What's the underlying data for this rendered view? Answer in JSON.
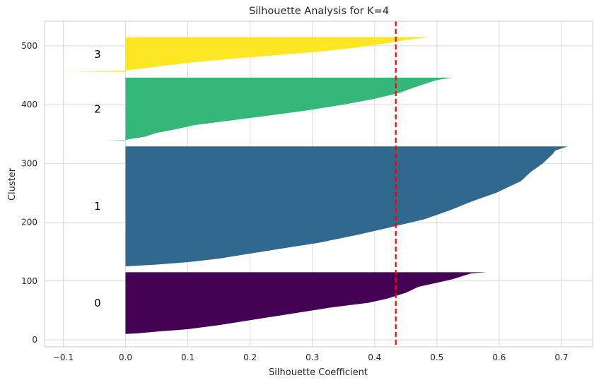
{
  "chart_data": {
    "type": "area",
    "title": "Silhouette Analysis for K=4",
    "xlabel": "Silhouette Coefficient",
    "ylabel": "Cluster",
    "xlim": [
      -0.13,
      0.75
    ],
    "ylim": [
      -12,
      542
    ],
    "x_ticks": [
      -0.1,
      0.0,
      0.1,
      0.2,
      0.3,
      0.4,
      0.5,
      0.6,
      0.7
    ],
    "x_tick_labels": [
      "−0.1",
      "0.0",
      "0.1",
      "0.2",
      "0.3",
      "0.4",
      "0.5",
      "0.6",
      "0.7"
    ],
    "y_ticks": [
      0,
      100,
      200,
      300,
      400,
      500
    ],
    "y_tick_labels": [
      "0",
      "100",
      "200",
      "300",
      "400",
      "500"
    ],
    "grid": true,
    "average_silhouette": 0.434,
    "average_line_color": "#ff0000",
    "label_x": -0.045,
    "clusters": [
      {
        "label": "0",
        "color": "#440154",
        "y_lower": 10,
        "y_upper": 115,
        "profile": [
          [
            115,
            0.58
          ],
          [
            113,
            0.555
          ],
          [
            108,
            0.54
          ],
          [
            103,
            0.525
          ],
          [
            97,
            0.5
          ],
          [
            90,
            0.47
          ],
          [
            80,
            0.45
          ],
          [
            70,
            0.42
          ],
          [
            63,
            0.39
          ],
          [
            55,
            0.33
          ],
          [
            45,
            0.27
          ],
          [
            35,
            0.21
          ],
          [
            25,
            0.15
          ],
          [
            18,
            0.1
          ],
          [
            14,
            0.05
          ],
          [
            11,
            0.02
          ],
          [
            10,
            0.0
          ]
        ]
      },
      {
        "label": "1",
        "color": "#31688e",
        "y_lower": 125,
        "y_upper": 329,
        "profile": [
          [
            329,
            0.71
          ],
          [
            322,
            0.69
          ],
          [
            315,
            0.685
          ],
          [
            300,
            0.67
          ],
          [
            285,
            0.65
          ],
          [
            270,
            0.635
          ],
          [
            250,
            0.595
          ],
          [
            235,
            0.555
          ],
          [
            220,
            0.52
          ],
          [
            205,
            0.48
          ],
          [
            190,
            0.42
          ],
          [
            178,
            0.37
          ],
          [
            165,
            0.31
          ],
          [
            155,
            0.25
          ],
          [
            145,
            0.19
          ],
          [
            138,
            0.15
          ],
          [
            132,
            0.1
          ],
          [
            128,
            0.05
          ],
          [
            126,
            0.02
          ],
          [
            125,
            0.0
          ]
        ]
      },
      {
        "label": "2",
        "color": "#35b779",
        "y_lower": 339,
        "y_upper": 446,
        "profile": [
          [
            446,
            0.525
          ],
          [
            442,
            0.5
          ],
          [
            435,
            0.48
          ],
          [
            428,
            0.46
          ],
          [
            420,
            0.44
          ],
          [
            410,
            0.4
          ],
          [
            400,
            0.35
          ],
          [
            390,
            0.29
          ],
          [
            380,
            0.22
          ],
          [
            372,
            0.16
          ],
          [
            365,
            0.11
          ],
          [
            358,
            0.08
          ],
          [
            352,
            0.05
          ],
          [
            345,
            0.03
          ],
          [
            342,
            0.01
          ],
          [
            340,
            0.0
          ],
          [
            339,
            -0.03
          ]
        ]
      },
      {
        "label": "3",
        "color": "#fde725",
        "y_lower": 456,
        "y_upper": 515,
        "profile": [
          [
            515,
            0.49
          ],
          [
            510,
            0.45
          ],
          [
            503,
            0.41
          ],
          [
            497,
            0.37
          ],
          [
            490,
            0.31
          ],
          [
            484,
            0.24
          ],
          [
            478,
            0.17
          ],
          [
            472,
            0.11
          ],
          [
            466,
            0.06
          ],
          [
            462,
            0.03
          ],
          [
            458,
            0.0
          ],
          [
            457,
            -0.04
          ],
          [
            456,
            -0.095
          ]
        ]
      }
    ]
  }
}
